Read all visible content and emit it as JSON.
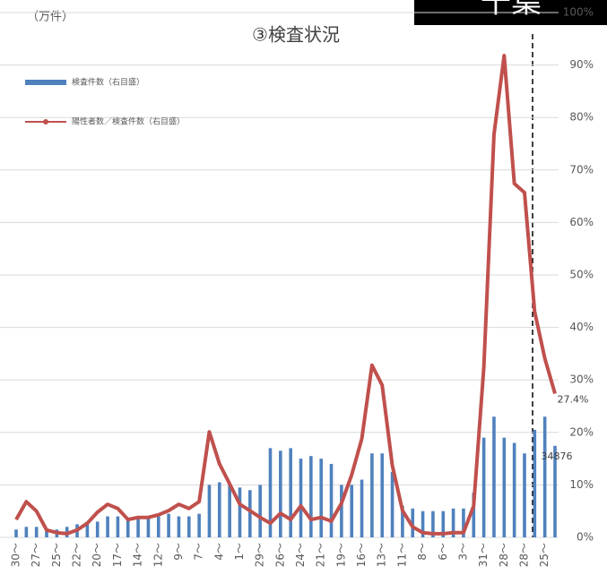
{
  "chart_data": {
    "type": "bar-line",
    "title": "③検査状況",
    "y_unit": "（万件）",
    "badge": "千葉",
    "categories": [
      "30～",
      null,
      "27～",
      null,
      "25～",
      null,
      "22～",
      null,
      "20～",
      null,
      "17～",
      null,
      "14～",
      null,
      "12～",
      null,
      "9～",
      null,
      "7～",
      null,
      "4～",
      null,
      "1～",
      null,
      "29～",
      null,
      "26～",
      null,
      "24～",
      null,
      "21～",
      null,
      "19～",
      null,
      "16～",
      null,
      "13～",
      null,
      "11～",
      null,
      "8～",
      null,
      "6～",
      null,
      "3～",
      null,
      "31～",
      null,
      "28～",
      null,
      "28～",
      null,
      "25～",
      null
    ],
    "ylim": [
      0,
      20
    ],
    "y2lim": [
      0,
      100
    ],
    "y2ticks": [
      {
        "value": 0,
        "label": "0%"
      },
      {
        "value": 10,
        "label": "10%"
      },
      {
        "value": 20,
        "label": "20%"
      },
      {
        "value": 30,
        "label": "30%"
      },
      {
        "value": 40,
        "label": "40%"
      },
      {
        "value": 50,
        "label": "50%"
      },
      {
        "value": 60,
        "label": "60%"
      },
      {
        "value": 70,
        "label": "70%"
      },
      {
        "value": 80,
        "label": "80%"
      },
      {
        "value": 90,
        "label": "90%"
      },
      {
        "value": 100,
        "label": "100%"
      }
    ],
    "series": [
      {
        "name": "検査件数（右目盛）",
        "kind": "bar",
        "color": "#4f81bd",
        "values": [
          0.3,
          0.4,
          0.4,
          0.3,
          0.3,
          0.4,
          0.5,
          0.6,
          0.6,
          0.8,
          0.8,
          0.7,
          0.7,
          0.8,
          0.8,
          0.9,
          0.8,
          0.8,
          0.9,
          2.0,
          2.1,
          2.0,
          1.9,
          1.8,
          2.0,
          3.4,
          3.3,
          3.4,
          3.0,
          3.1,
          3.0,
          2.8,
          2.0,
          2.0,
          2.2,
          3.2,
          3.2,
          2.5,
          1.2,
          1.1,
          1.0,
          1.0,
          1.0,
          1.1,
          1.1,
          1.7,
          3.8,
          4.6,
          3.8,
          3.6,
          3.2,
          4.1,
          4.6,
          3.4876
        ],
        "value_labels": [
          null,
          null,
          null,
          null,
          null,
          null,
          null,
          null,
          null,
          null,
          null,
          null,
          null,
          null,
          null,
          null,
          null,
          null,
          null,
          null,
          null,
          null,
          null,
          null,
          null,
          null,
          null,
          null,
          null,
          null,
          null,
          null,
          null,
          null,
          null,
          null,
          null,
          null,
          null,
          null,
          null,
          null,
          null,
          null,
          null,
          null,
          null,
          null,
          null,
          null,
          null,
          null,
          null,
          "34876"
        ]
      },
      {
        "name": "陽性者数／検査件数（右目盛）",
        "kind": "line",
        "axis": "y2",
        "color": "#c0504d",
        "values": [
          3.4,
          6.8,
          5,
          1.4,
          0.9,
          0.7,
          1.4,
          2.7,
          4.8,
          6.3,
          5.5,
          3.4,
          3.8,
          3.8,
          4.3,
          5.1,
          6.3,
          5.5,
          6.8,
          20.1,
          14,
          10.2,
          6.3,
          5.1,
          3.8,
          2.7,
          4.6,
          3.4,
          6,
          3.4,
          3.8,
          3.1,
          6.5,
          11.9,
          18.8,
          32.8,
          29,
          13.7,
          5.1,
          2,
          0.9,
          0.7,
          0.7,
          0.9,
          0.9,
          6,
          32.4,
          76.8,
          91.8,
          67.4,
          65.7,
          43,
          34.1,
          27.4
        ],
        "value_labels": [
          null,
          null,
          null,
          null,
          null,
          null,
          null,
          null,
          null,
          null,
          null,
          null,
          null,
          null,
          null,
          null,
          null,
          null,
          null,
          null,
          null,
          null,
          null,
          null,
          null,
          null,
          null,
          null,
          null,
          null,
          null,
          null,
          null,
          null,
          null,
          null,
          null,
          null,
          null,
          null,
          null,
          null,
          null,
          null,
          null,
          null,
          null,
          null,
          null,
          null,
          null,
          null,
          null,
          "27.4%"
        ]
      }
    ]
  }
}
